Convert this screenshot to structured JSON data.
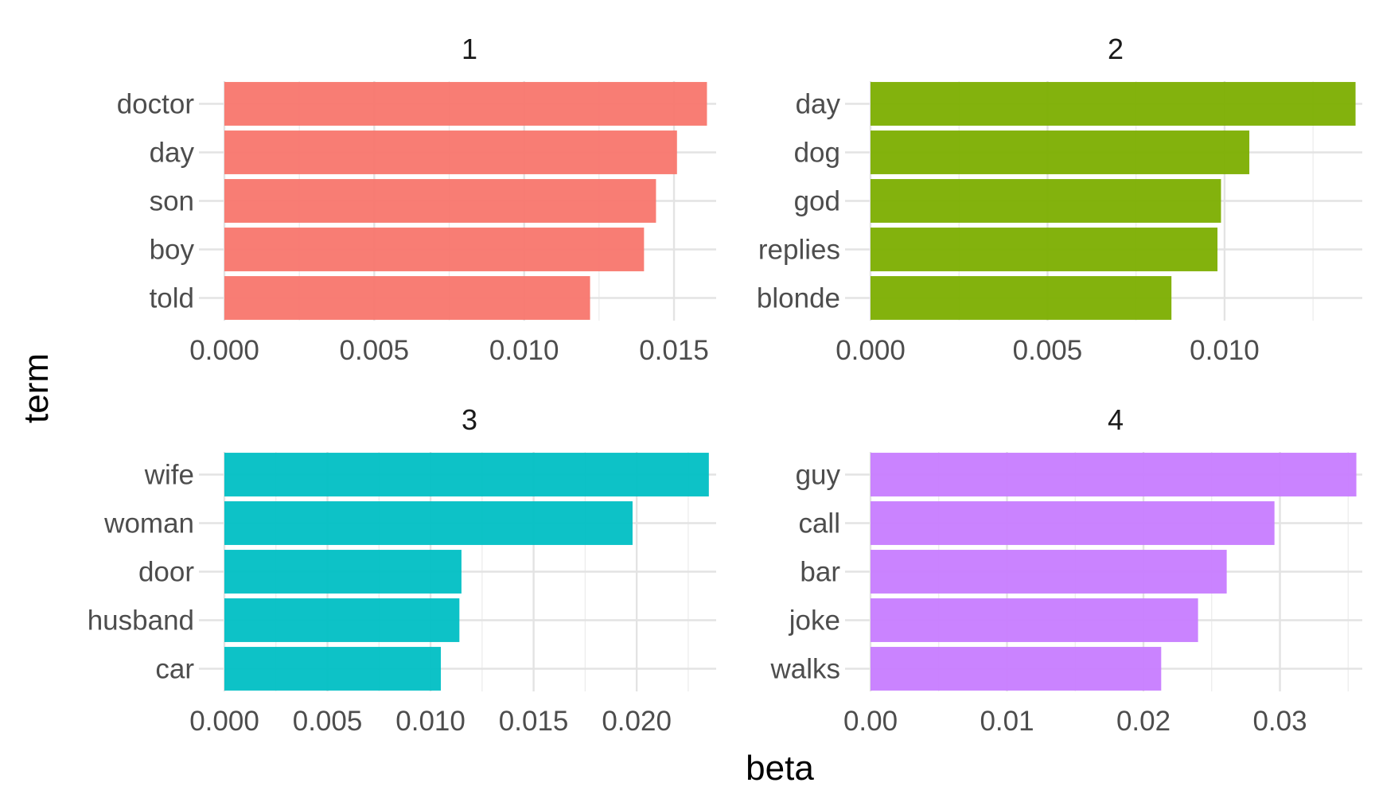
{
  "chart_data": {
    "type": "bar",
    "orientation": "horizontal",
    "xlabel": "beta",
    "ylabel": "term",
    "grid": true,
    "panels": [
      {
        "strip": "1",
        "color": "#F8766D",
        "categories": [
          "doctor",
          "day",
          "son",
          "boy",
          "told"
        ],
        "values": [
          0.0161,
          0.0151,
          0.0144,
          0.014,
          0.0122
        ],
        "xlim": [
          0,
          0.0163
        ],
        "ticks": [
          0.0,
          0.005,
          0.01,
          0.015
        ],
        "tick_labels": [
          "0.000",
          "0.005",
          "0.010",
          "0.015"
        ]
      },
      {
        "strip": "2",
        "color": "#7CAE00",
        "categories": [
          "day",
          "dog",
          "god",
          "replies",
          "blonde"
        ],
        "values": [
          0.0137,
          0.0107,
          0.0099,
          0.0098,
          0.0085
        ],
        "xlim": [
          0,
          0.0138
        ],
        "ticks": [
          0.0,
          0.005,
          0.01
        ],
        "tick_labels": [
          "0.000",
          "0.005",
          "0.010"
        ]
      },
      {
        "strip": "3",
        "color": "#00BFC4",
        "categories": [
          "wife",
          "woman",
          "door",
          "husband",
          "car"
        ],
        "values": [
          0.0235,
          0.0198,
          0.0115,
          0.0114,
          0.0105
        ],
        "xlim": [
          0,
          0.0237
        ],
        "ticks": [
          0.0,
          0.005,
          0.01,
          0.015,
          0.02
        ],
        "tick_labels": [
          "0.000",
          "0.005",
          "0.010",
          "0.015",
          "0.020"
        ]
      },
      {
        "strip": "4",
        "color": "#C77CFF",
        "categories": [
          "guy",
          "call",
          "bar",
          "joke",
          "walks"
        ],
        "values": [
          0.0356,
          0.0296,
          0.0261,
          0.024,
          0.0213
        ],
        "xlim": [
          0,
          0.0358
        ],
        "ticks": [
          0.0,
          0.01,
          0.02,
          0.03
        ],
        "tick_labels": [
          "0.00",
          "0.01",
          "0.02",
          "0.03"
        ]
      }
    ]
  }
}
